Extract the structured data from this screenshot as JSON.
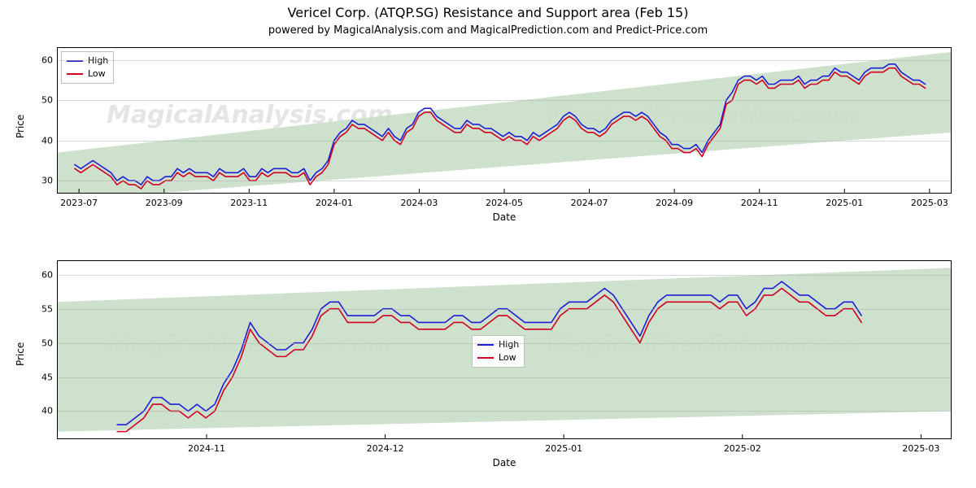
{
  "title": "Vericel Corp. (ATQP.SG) Resistance and Support area (Feb 15)",
  "subtitle": "powered by MagicalAnalysis.com and MagicalPrediction.com and Predict-Price.com",
  "colors": {
    "high": "#1f1fd6",
    "low": "#d00020",
    "band": "#c8dec6",
    "grid": "#b0b0b0",
    "border": "#000000",
    "watermark": "#7f7f7f"
  },
  "watermarks": [
    "MagicalAnalysis.com",
    "MagicalPrediction.com"
  ],
  "chart1": {
    "type": "line",
    "ylabel": "Price",
    "xlabel": "Date",
    "ylim": [
      27,
      63
    ],
    "yticks": [
      30,
      40,
      50,
      60
    ],
    "xlim": [
      0,
      21
    ],
    "xticks": [
      {
        "t": 0.5,
        "label": "2023-07"
      },
      {
        "t": 2.5,
        "label": "2023-09"
      },
      {
        "t": 4.5,
        "label": "2023-11"
      },
      {
        "t": 6.5,
        "label": "2024-01"
      },
      {
        "t": 8.5,
        "label": "2024-03"
      },
      {
        "t": 10.5,
        "label": "2024-05"
      },
      {
        "t": 12.5,
        "label": "2024-07"
      },
      {
        "t": 14.5,
        "label": "2024-09"
      },
      {
        "t": 16.5,
        "label": "2024-11"
      },
      {
        "t": 18.5,
        "label": "2025-01"
      },
      {
        "t": 20.5,
        "label": "2025-03"
      }
    ],
    "band": {
      "x": [
        0,
        21
      ],
      "y_low_start": 25,
      "y_low_end": 42,
      "y_high_start": 37,
      "y_high_end": 62
    },
    "legend_pos": "top-left",
    "series": {
      "high": [
        34,
        33,
        34,
        35,
        34,
        33,
        32,
        30,
        31,
        30,
        30,
        29,
        31,
        30,
        30,
        31,
        31,
        33,
        32,
        33,
        32,
        32,
        32,
        31,
        33,
        32,
        32,
        32,
        33,
        31,
        31,
        33,
        32,
        33,
        33,
        33,
        32,
        32,
        33,
        30,
        32,
        33,
        35,
        40,
        42,
        43,
        45,
        44,
        44,
        43,
        42,
        41,
        43,
        41,
        40,
        43,
        44,
        47,
        48,
        48,
        46,
        45,
        44,
        43,
        43,
        45,
        44,
        44,
        43,
        43,
        42,
        41,
        42,
        41,
        41,
        40,
        42,
        41,
        42,
        43,
        44,
        46,
        47,
        46,
        44,
        43,
        43,
        42,
        43,
        45,
        46,
        47,
        47,
        46,
        47,
        46,
        44,
        42,
        41,
        39,
        39,
        38,
        38,
        39,
        37,
        40,
        42,
        44,
        50,
        52,
        55,
        56,
        56,
        55,
        56,
        54,
        54,
        55,
        55,
        55,
        56,
        54,
        55,
        55,
        56,
        56,
        58,
        57,
        57,
        56,
        55,
        57,
        58,
        58,
        58,
        59,
        59,
        57,
        56,
        55,
        55,
        54
      ],
      "low": [
        33,
        32,
        33,
        34,
        33,
        32,
        31,
        29,
        30,
        29,
        29,
        28,
        30,
        29,
        29,
        30,
        30,
        32,
        31,
        32,
        31,
        31,
        31,
        30,
        32,
        31,
        31,
        31,
        32,
        30,
        30,
        32,
        31,
        32,
        32,
        32,
        31,
        31,
        32,
        29,
        31,
        32,
        34,
        39,
        41,
        42,
        44,
        43,
        43,
        42,
        41,
        40,
        42,
        40,
        39,
        42,
        43,
        46,
        47,
        47,
        45,
        44,
        43,
        42,
        42,
        44,
        43,
        43,
        42,
        42,
        41,
        40,
        41,
        40,
        40,
        39,
        41,
        40,
        41,
        42,
        43,
        45,
        46,
        45,
        43,
        42,
        42,
        41,
        42,
        44,
        45,
        46,
        46,
        45,
        46,
        45,
        43,
        41,
        40,
        38,
        38,
        37,
        37,
        38,
        36,
        39,
        41,
        43,
        49,
        50,
        54,
        55,
        55,
        54,
        55,
        53,
        53,
        54,
        54,
        54,
        55,
        53,
        54,
        54,
        55,
        55,
        57,
        56,
        56,
        55,
        54,
        56,
        57,
        57,
        57,
        58,
        58,
        56,
        55,
        54,
        54,
        53
      ]
    }
  },
  "chart2": {
    "type": "line",
    "ylabel": "Price",
    "xlabel": "Date",
    "ylim": [
      36,
      62
    ],
    "yticks": [
      40,
      45,
      50,
      55,
      60
    ],
    "xlim": [
      0,
      6
    ],
    "xticks": [
      {
        "t": 1.0,
        "label": "2024-11"
      },
      {
        "t": 2.2,
        "label": "2024-12"
      },
      {
        "t": 3.4,
        "label": "2025-01"
      },
      {
        "t": 4.6,
        "label": "2025-02"
      },
      {
        "t": 5.8,
        "label": "2025-03"
      }
    ],
    "band": {
      "x": [
        0,
        6
      ],
      "y_low_start": 37,
      "y_low_end": 40,
      "y_high_start": 56,
      "y_high_end": 61
    },
    "legend_pos": "center",
    "series": {
      "high": [
        38,
        38,
        39,
        40,
        42,
        42,
        41,
        41,
        40,
        41,
        40,
        41,
        44,
        46,
        49,
        53,
        51,
        50,
        49,
        49,
        50,
        50,
        52,
        55,
        56,
        56,
        54,
        54,
        54,
        54,
        55,
        55,
        54,
        54,
        53,
        53,
        53,
        53,
        54,
        54,
        53,
        53,
        54,
        55,
        55,
        54,
        53,
        53,
        53,
        53,
        55,
        56,
        56,
        56,
        57,
        58,
        57,
        55,
        53,
        51,
        54,
        56,
        57,
        57,
        57,
        57,
        57,
        57,
        56,
        57,
        57,
        55,
        56,
        58,
        58,
        59,
        58,
        57,
        57,
        56,
        55,
        55,
        56,
        56,
        54
      ],
      "low": [
        37,
        37,
        38,
        39,
        41,
        41,
        40,
        40,
        39,
        40,
        39,
        40,
        43,
        45,
        48,
        52,
        50,
        49,
        48,
        48,
        49,
        49,
        51,
        54,
        55,
        55,
        53,
        53,
        53,
        53,
        54,
        54,
        53,
        53,
        52,
        52,
        52,
        52,
        53,
        53,
        52,
        52,
        53,
        54,
        54,
        53,
        52,
        52,
        52,
        52,
        54,
        55,
        55,
        55,
        56,
        57,
        56,
        54,
        52,
        50,
        53,
        55,
        56,
        56,
        56,
        56,
        56,
        56,
        55,
        56,
        56,
        54,
        55,
        57,
        57,
        58,
        57,
        56,
        56,
        55,
        54,
        54,
        55,
        55,
        53
      ]
    }
  },
  "legend": {
    "items": [
      {
        "label": "High",
        "color_key": "high"
      },
      {
        "label": "Low",
        "color_key": "low"
      }
    ]
  }
}
